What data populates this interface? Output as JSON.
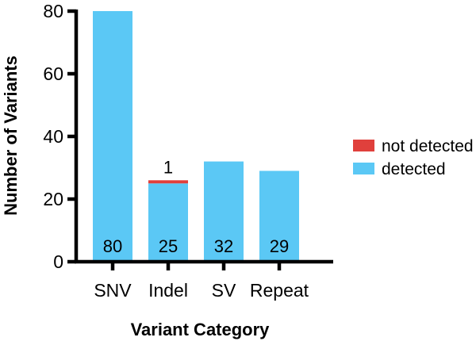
{
  "chart_data": {
    "type": "bar",
    "stacked": true,
    "categories": [
      "SNV",
      "Indel",
      "SV",
      "Repeat"
    ],
    "series": [
      {
        "name": "detected",
        "values": [
          80,
          25,
          32,
          29
        ],
        "color": "#5bc8f5"
      },
      {
        "name": "not detected",
        "values": [
          0,
          1,
          0,
          0
        ],
        "color": "#e0403c"
      }
    ],
    "xlabel": "Variant Category",
    "ylabel": "Number of Variants",
    "ylim": [
      0,
      80
    ],
    "yticks": [
      0,
      20,
      40,
      60,
      80
    ],
    "data_labels": {
      "detected": [
        "80",
        "25",
        "32",
        "29"
      ],
      "not_detected": [
        "",
        "1",
        "",
        ""
      ]
    },
    "legend": {
      "placement": "right",
      "entries": [
        "not detected",
        "detected"
      ]
    },
    "grid": false
  }
}
